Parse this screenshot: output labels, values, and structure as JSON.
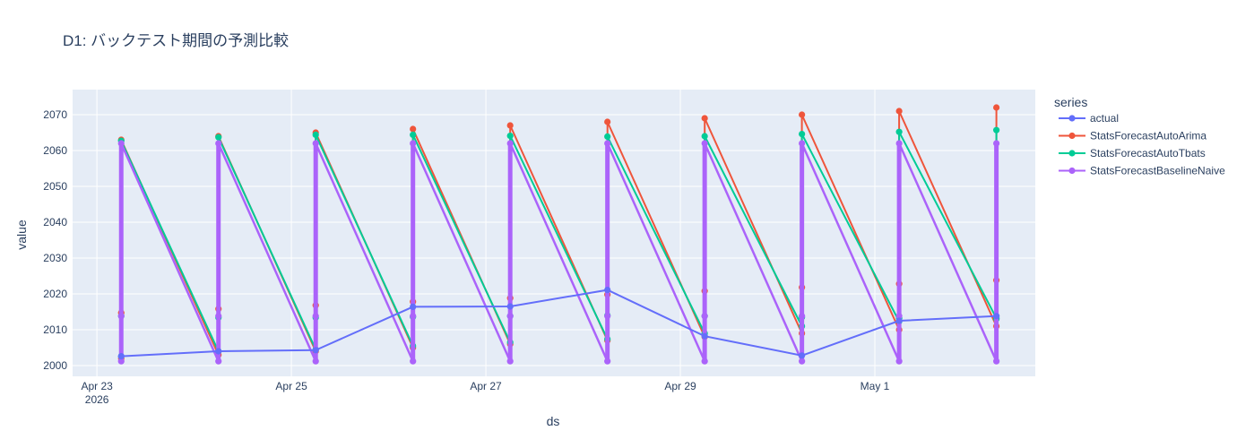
{
  "chart_data": {
    "type": "line",
    "title": "D1: バックテスト期間の予測比較",
    "xlabel": "ds",
    "ylabel": "value",
    "legend_title": "series",
    "legend_position": "right",
    "x_range_days": [
      -0.25,
      9.65
    ],
    "ylim": [
      1997,
      2077
    ],
    "x_ticks": [
      {
        "day": 0,
        "label": "Apr 23",
        "sub": "2026"
      },
      {
        "day": 2,
        "label": "Apr 25"
      },
      {
        "day": 4,
        "label": "Apr 27"
      },
      {
        "day": 6,
        "label": "Apr 29"
      },
      {
        "day": 8,
        "label": "May 1"
      }
    ],
    "y_ticks": [
      2000,
      2010,
      2020,
      2030,
      2040,
      2050,
      2060,
      2070
    ],
    "cutoff_days": [
      0.25,
      1.25,
      2.25,
      3.25,
      4.25,
      5.25,
      6.25,
      7.25,
      8.25,
      9.25
    ],
    "series": [
      {
        "name": "actual",
        "color": "#636efa",
        "x": [
          0.25,
          1.25,
          2.25,
          3.25,
          4.25,
          5.25,
          6.25,
          7.25,
          8.25,
          9.25
        ],
        "y": [
          2002.6,
          2004.0,
          2004.3,
          2016.4,
          2016.5,
          2021.1,
          2008.2,
          2002.8,
          2012.5,
          2013.8
        ]
      },
      {
        "name": "StatsForecastAutoArima",
        "color": "#ef553b",
        "cutoff_ranges": [
          [
            2002.0,
            2063.0
          ],
          [
            2003.0,
            2064.0
          ],
          [
            2004.0,
            2065.0
          ],
          [
            2005.0,
            2066.0
          ],
          [
            2006.0,
            2067.0
          ],
          [
            2007.0,
            2068.0
          ],
          [
            2008.0,
            2069.0
          ],
          [
            2009.0,
            2070.0
          ],
          [
            2010.0,
            2071.0
          ],
          [
            2011.0,
            2072.0
          ]
        ],
        "mid_markers": [
          2014.7,
          2015.8,
          2016.8,
          2017.8,
          2018.8,
          2019.8,
          2020.8,
          2021.8,
          2022.8,
          2023.8
        ]
      },
      {
        "name": "StatsForecastAutoTbats",
        "color": "#00cc96",
        "cutoff_ranges": [
          [
            2002.6,
            2062.7
          ],
          [
            2004.0,
            2063.7
          ],
          [
            2004.5,
            2064.4
          ],
          [
            2005.5,
            2064.4
          ],
          [
            2006.5,
            2064.1
          ],
          [
            2007.4,
            2063.9
          ],
          [
            2009.0,
            2064.0
          ],
          [
            2011.0,
            2064.6
          ],
          [
            2012.3,
            2065.2
          ],
          [
            2013.2,
            2065.7
          ]
        ],
        "mid_markers": [
          2013.8,
          2013.4,
          2013.4,
          2013.6,
          2013.8,
          2014.0,
          2013.8,
          2013.5,
          2013.2,
          2013.0
        ]
      },
      {
        "name": "StatsForecastBaselineNaive",
        "color": "#ab63fa",
        "cutoff_ranges": [
          [
            2001.2,
            2062.0
          ],
          [
            2001.2,
            2062.0
          ],
          [
            2001.2,
            2062.0
          ],
          [
            2001.2,
            2062.0
          ],
          [
            2001.2,
            2062.0
          ],
          [
            2001.2,
            2062.0
          ],
          [
            2001.2,
            2062.0
          ],
          [
            2001.2,
            2062.0
          ],
          [
            2001.2,
            2062.0
          ],
          [
            2001.2,
            2062.0
          ]
        ],
        "mid_markers": [
          2013.8,
          2013.8,
          2013.8,
          2013.8,
          2013.8,
          2013.8,
          2013.8,
          2013.8,
          2013.8,
          2013.8
        ]
      }
    ]
  }
}
